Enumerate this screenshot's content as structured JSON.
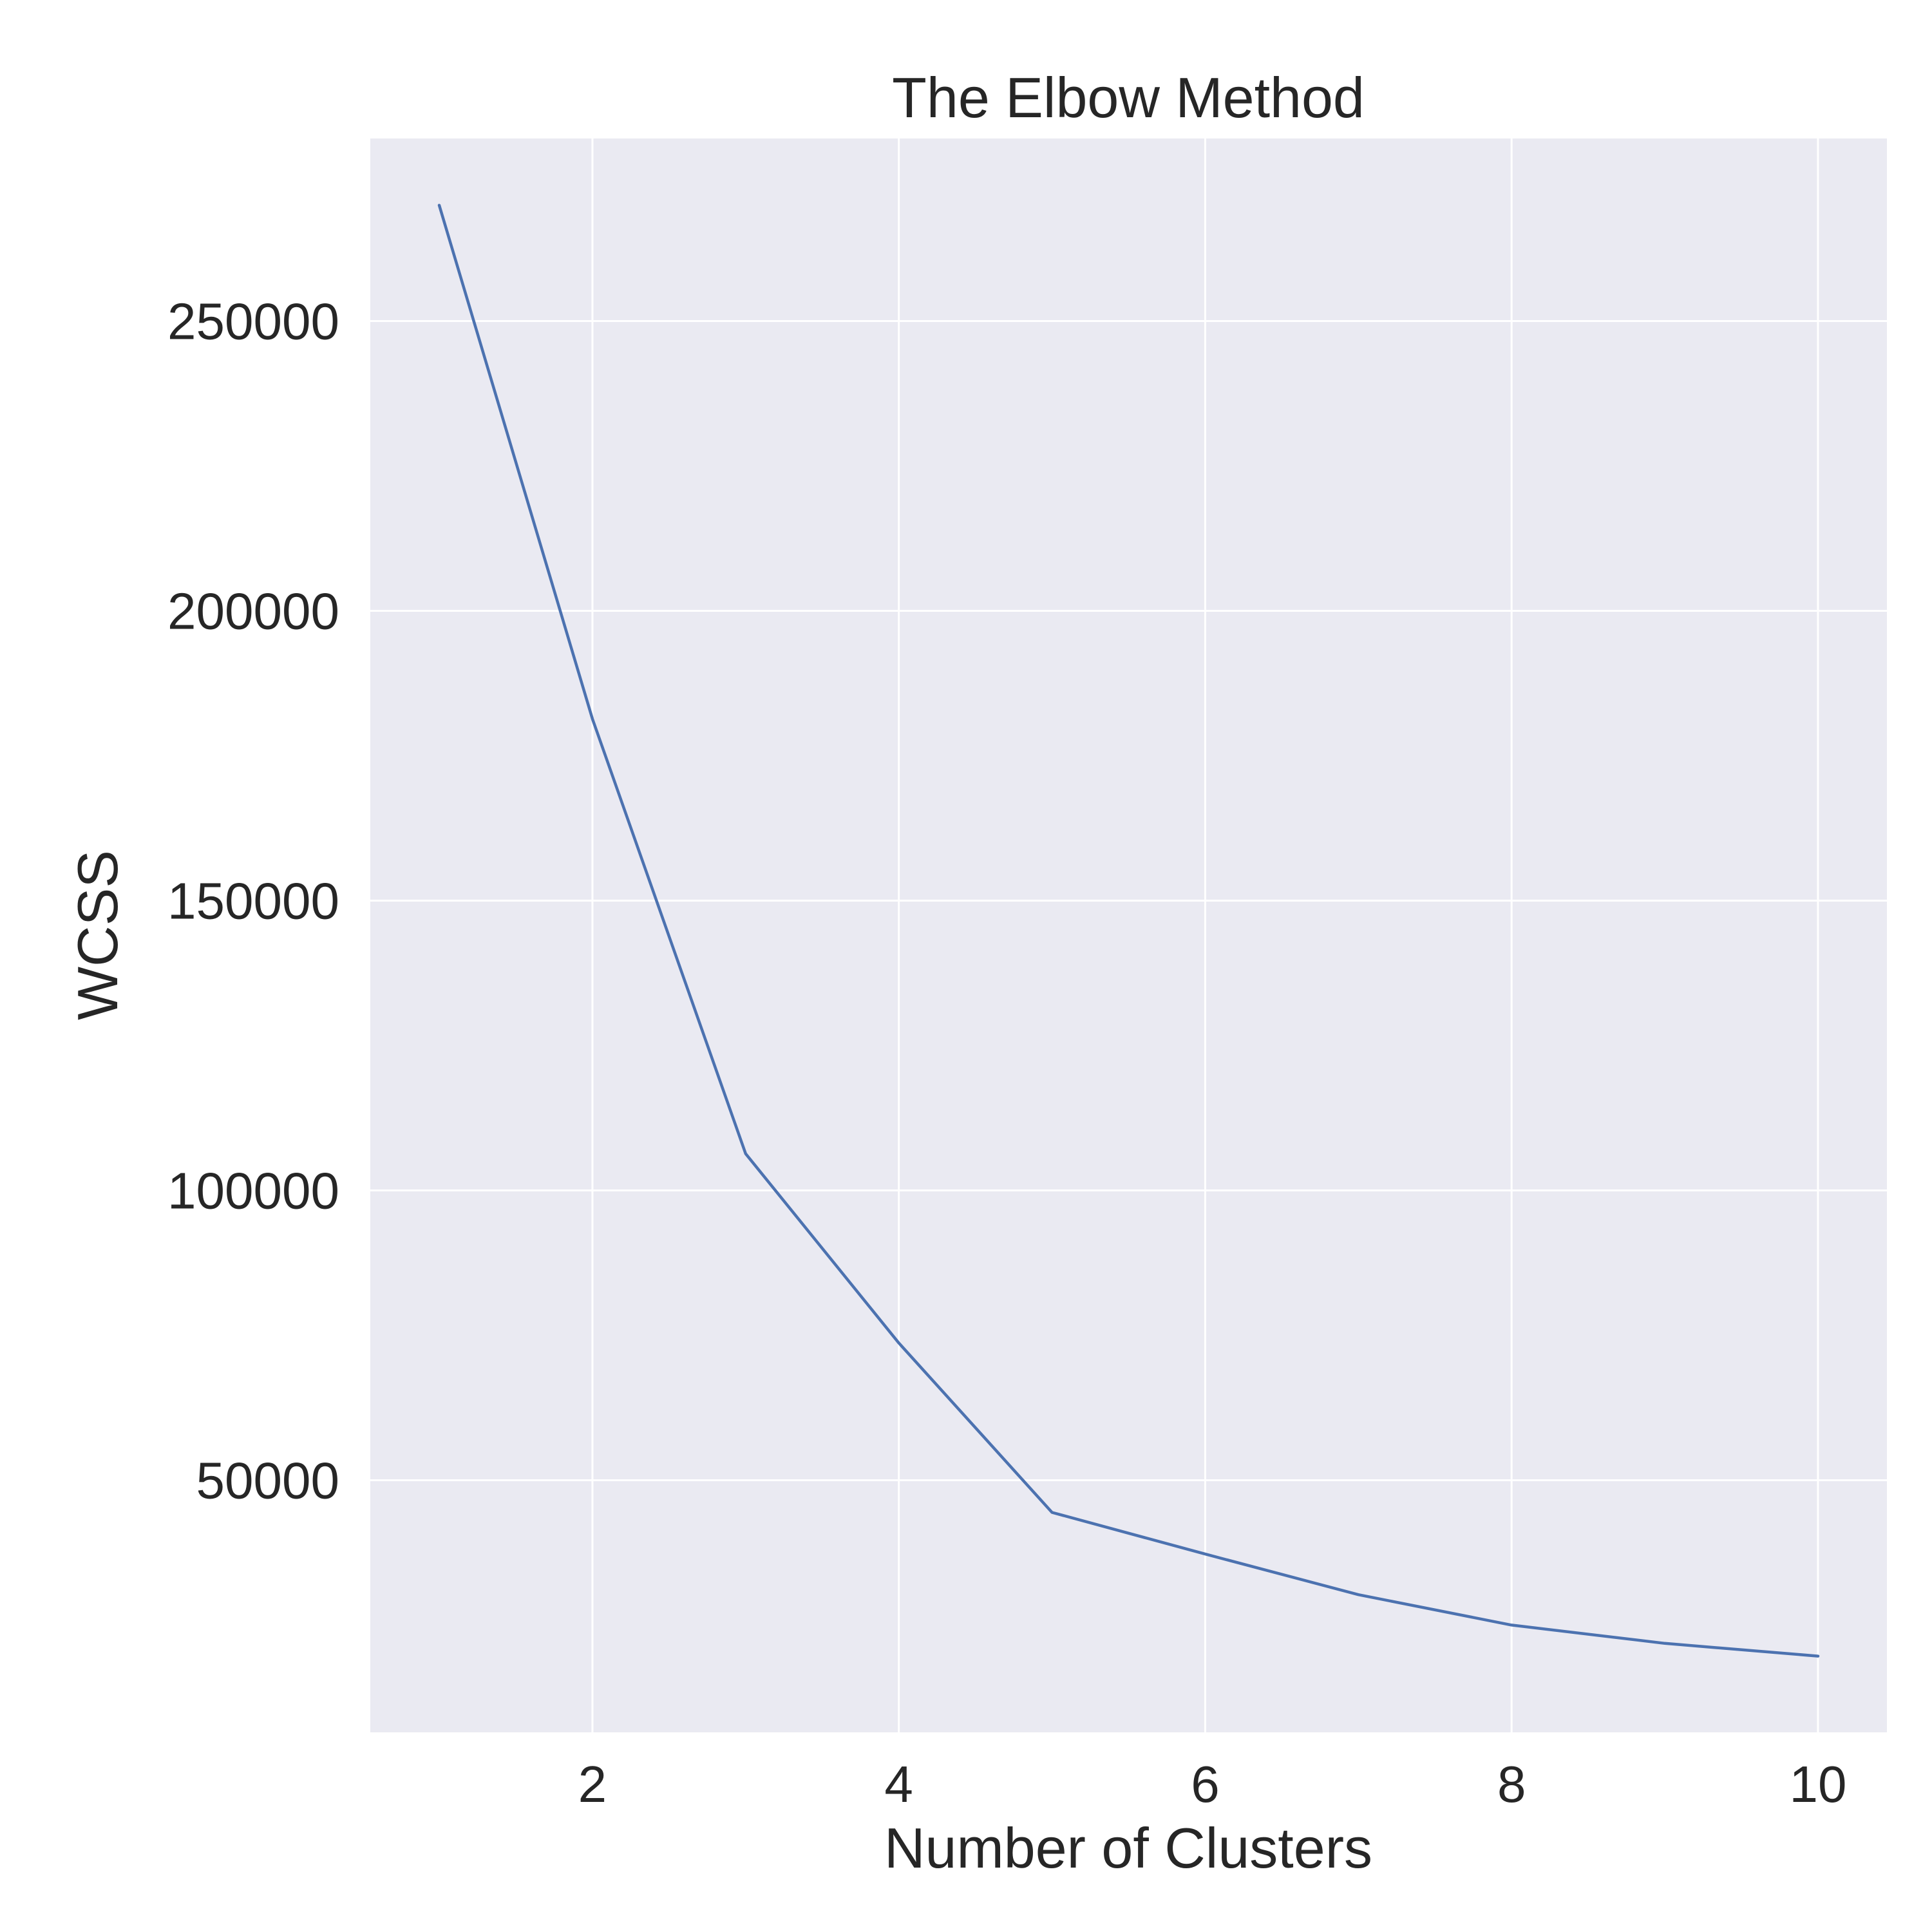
{
  "chart_data": {
    "type": "line",
    "title": "The Elbow Method",
    "xlabel": "Number of Clusters",
    "ylabel": "WCSS",
    "x": [
      1,
      2,
      3,
      4,
      5,
      6,
      7,
      8,
      9,
      10
    ],
    "series": [
      {
        "values": [
          269981,
          181363,
          106348,
          73679,
          44448,
          37265,
          30260,
          25011,
          21850,
          19657
        ]
      }
    ],
    "xlim": [
      0.55,
      10.45
    ],
    "ylim": [
      6500,
      281500
    ],
    "xticks": [
      2,
      4,
      6,
      8,
      10
    ],
    "yticks": [
      50000,
      100000,
      150000,
      200000,
      250000
    ],
    "grid": true,
    "legend": "none",
    "colors": {
      "background": "#eaeaf2",
      "grid": "#ffffff",
      "line": "#4c72b0",
      "text": "#262626"
    }
  }
}
